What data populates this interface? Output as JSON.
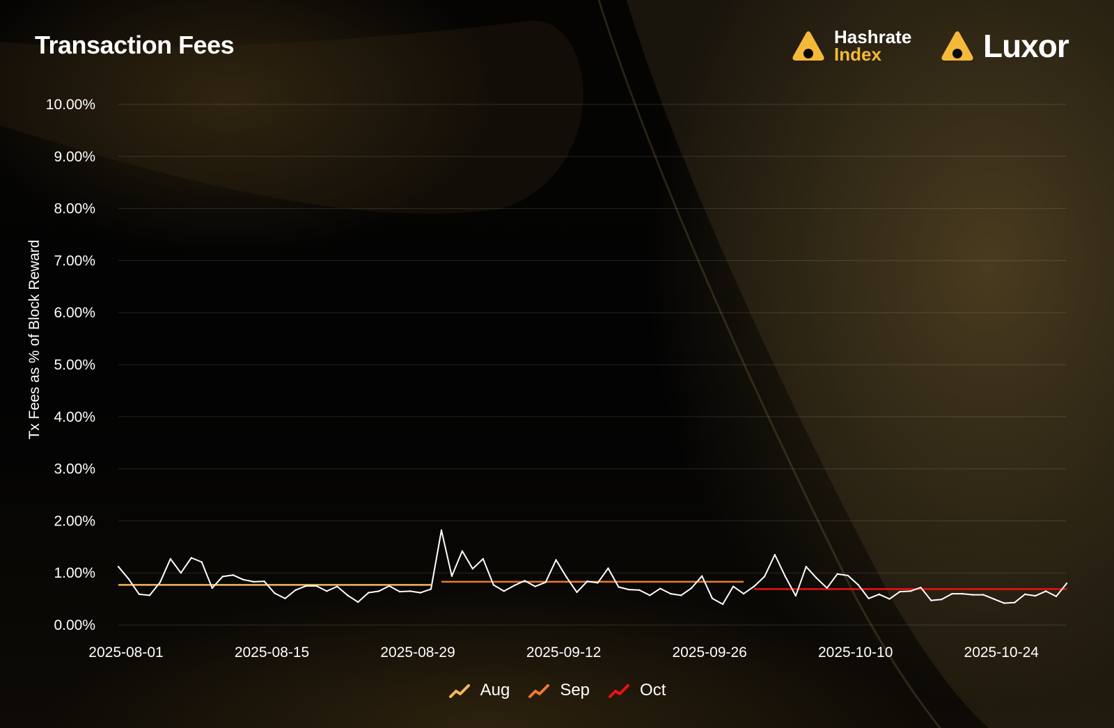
{
  "title": "Transaction Fees",
  "brands": {
    "hashrate_index": {
      "line1": "Hashrate",
      "line2": "Index"
    },
    "luxor": "Luxor",
    "accent_color": "#f5b93a"
  },
  "chart_data": {
    "type": "line",
    "title": "Transaction Fees",
    "xlabel": "",
    "ylabel": "Tx Fees as % of Block Reward",
    "ylim": [
      0,
      10
    ],
    "y_unit": "%",
    "yticks": [
      "0.00%",
      "1.00%",
      "2.00%",
      "3.00%",
      "4.00%",
      "5.00%",
      "6.00%",
      "7.00%",
      "8.00%",
      "9.00%",
      "10.00%"
    ],
    "xticks": [
      "2025-08-01",
      "2025-08-15",
      "2025-08-29",
      "2025-09-12",
      "2025-09-26",
      "2025-10-10",
      "2025-10-24"
    ],
    "x_range": [
      "2025-08-01",
      "2025-10-31"
    ],
    "grid": "horizontal",
    "legend_position": "bottom-center",
    "series": [
      {
        "kind": "daily",
        "color": "#ffffff",
        "x": [
          "2025-08-01",
          "2025-08-02",
          "2025-08-03",
          "2025-08-04",
          "2025-08-05",
          "2025-08-06",
          "2025-08-07",
          "2025-08-08",
          "2025-08-09",
          "2025-08-10",
          "2025-08-11",
          "2025-08-12",
          "2025-08-13",
          "2025-08-14",
          "2025-08-15",
          "2025-08-16",
          "2025-08-17",
          "2025-08-18",
          "2025-08-19",
          "2025-08-20",
          "2025-08-21",
          "2025-08-22",
          "2025-08-23",
          "2025-08-24",
          "2025-08-25",
          "2025-08-26",
          "2025-08-27",
          "2025-08-28",
          "2025-08-29",
          "2025-08-30",
          "2025-08-31",
          "2025-09-01",
          "2025-09-02",
          "2025-09-03",
          "2025-09-04",
          "2025-09-05",
          "2025-09-06",
          "2025-09-07",
          "2025-09-08",
          "2025-09-09",
          "2025-09-10",
          "2025-09-11",
          "2025-09-12",
          "2025-09-13",
          "2025-09-14",
          "2025-09-15",
          "2025-09-16",
          "2025-09-17",
          "2025-09-18",
          "2025-09-19",
          "2025-09-20",
          "2025-09-21",
          "2025-09-22",
          "2025-09-23",
          "2025-09-24",
          "2025-09-25",
          "2025-09-26",
          "2025-09-27",
          "2025-09-28",
          "2025-09-29",
          "2025-09-30",
          "2025-10-01",
          "2025-10-02",
          "2025-10-03",
          "2025-10-04",
          "2025-10-05",
          "2025-10-06",
          "2025-10-07",
          "2025-10-08",
          "2025-10-09",
          "2025-10-10",
          "2025-10-11",
          "2025-10-12",
          "2025-10-13",
          "2025-10-14",
          "2025-10-15",
          "2025-10-16",
          "2025-10-17",
          "2025-10-18",
          "2025-10-19",
          "2025-10-20",
          "2025-10-21",
          "2025-10-22",
          "2025-10-23",
          "2025-10-24",
          "2025-10-25",
          "2025-10-26",
          "2025-10-27",
          "2025-10-28",
          "2025-10-29",
          "2025-10-30",
          "2025-10-31"
        ],
        "values": [
          1.12,
          0.88,
          0.59,
          0.57,
          0.82,
          1.27,
          1.0,
          1.29,
          1.21,
          0.71,
          0.93,
          0.96,
          0.87,
          0.83,
          0.84,
          0.61,
          0.51,
          0.67,
          0.75,
          0.75,
          0.65,
          0.74,
          0.57,
          0.44,
          0.62,
          0.65,
          0.75,
          0.64,
          0.65,
          0.62,
          0.69,
          1.82,
          0.94,
          1.42,
          1.08,
          1.27,
          0.77,
          0.65,
          0.76,
          0.85,
          0.74,
          0.82,
          1.25,
          0.92,
          0.63,
          0.84,
          0.81,
          1.09,
          0.73,
          0.68,
          0.67,
          0.57,
          0.7,
          0.6,
          0.57,
          0.71,
          0.94,
          0.51,
          0.4,
          0.74,
          0.6,
          0.74,
          0.93,
          1.35,
          0.93,
          0.56,
          1.12,
          0.9,
          0.71,
          0.98,
          0.95,
          0.77,
          0.51,
          0.59,
          0.5,
          0.64,
          0.65,
          0.72,
          0.47,
          0.49,
          0.6,
          0.6,
          0.58,
          0.58,
          0.5,
          0.42,
          0.43,
          0.59,
          0.56,
          0.65,
          0.55,
          0.8
        ]
      },
      {
        "kind": "average",
        "name": "Aug",
        "color": "#f5b85a",
        "x_start": "2025-08-01",
        "x_end": "2025-08-31",
        "value": 0.77
      },
      {
        "kind": "average",
        "name": "Sep",
        "color": "#ef7a32",
        "x_start": "2025-09-01",
        "x_end": "2025-09-30",
        "value": 0.83
      },
      {
        "kind": "average",
        "name": "Oct",
        "color": "#ee1111",
        "x_start": "2025-10-01",
        "x_end": "2025-10-31",
        "value": 0.69
      }
    ],
    "legend": [
      {
        "label": "Aug",
        "color": "#f5b85a"
      },
      {
        "label": "Sep",
        "color": "#ef7a32"
      },
      {
        "label": "Oct",
        "color": "#ee1111"
      }
    ]
  }
}
